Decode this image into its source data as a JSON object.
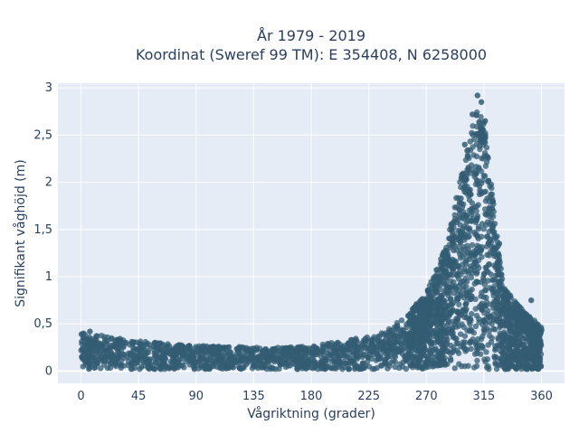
{
  "chart_data": {
    "type": "scatter",
    "title_line1": "År 1979 - 2019",
    "title_line2": "Koordinat (Sweref 99 TM): E 354408, N 6258000",
    "xlabel": "Vågriktning (grader)",
    "ylabel": "Signifikant våghöjd (m)",
    "xlim": [
      -18,
      378
    ],
    "ylim": [
      -0.13,
      3.05
    ],
    "x_ticks": [
      0,
      45,
      90,
      135,
      180,
      225,
      270,
      315,
      360
    ],
    "x_tick_labels": [
      "0",
      "45",
      "90",
      "135",
      "180",
      "225",
      "270",
      "315",
      "360"
    ],
    "y_ticks": [
      0,
      0.5,
      1,
      1.5,
      2,
      2.5,
      3
    ],
    "y_tick_labels": [
      "0",
      "0,5",
      "1",
      "1,5",
      "2",
      "2,5",
      "3"
    ],
    "grid": true,
    "colors": {
      "plot_bg": "#e5ecf6",
      "grid": "#ffffff",
      "marker": "#335c73",
      "text": "#2a3f5f"
    },
    "envelope": [
      {
        "x": 0,
        "y": 0.42
      },
      {
        "x": 20,
        "y": 0.38
      },
      {
        "x": 45,
        "y": 0.33
      },
      {
        "x": 90,
        "y": 0.28
      },
      {
        "x": 135,
        "y": 0.26
      },
      {
        "x": 180,
        "y": 0.27
      },
      {
        "x": 225,
        "y": 0.38
      },
      {
        "x": 250,
        "y": 0.55
      },
      {
        "x": 270,
        "y": 0.85
      },
      {
        "x": 285,
        "y": 1.35
      },
      {
        "x": 295,
        "y": 2.0
      },
      {
        "x": 305,
        "y": 2.6
      },
      {
        "x": 310,
        "y": 2.92
      },
      {
        "x": 315,
        "y": 2.75
      },
      {
        "x": 320,
        "y": 2.2
      },
      {
        "x": 325,
        "y": 1.5
      },
      {
        "x": 330,
        "y": 0.95
      },
      {
        "x": 340,
        "y": 0.75
      },
      {
        "x": 350,
        "y": 0.6
      },
      {
        "x": 360,
        "y": 0.5
      }
    ],
    "outliers": [
      {
        "x": 310,
        "y": 2.92
      },
      {
        "x": 313,
        "y": 2.85
      },
      {
        "x": 306,
        "y": 2.72
      },
      {
        "x": 316,
        "y": 2.65
      },
      {
        "x": 300,
        "y": 2.4
      },
      {
        "x": 297,
        "y": 1.83
      },
      {
        "x": 322,
        "y": 1.8
      },
      {
        "x": 327,
        "y": 1.35
      },
      {
        "x": 331,
        "y": 0.8
      },
      {
        "x": 352,
        "y": 0.75
      },
      {
        "x": 7,
        "y": 0.42
      },
      {
        "x": 2,
        "y": 0.4
      }
    ]
  }
}
